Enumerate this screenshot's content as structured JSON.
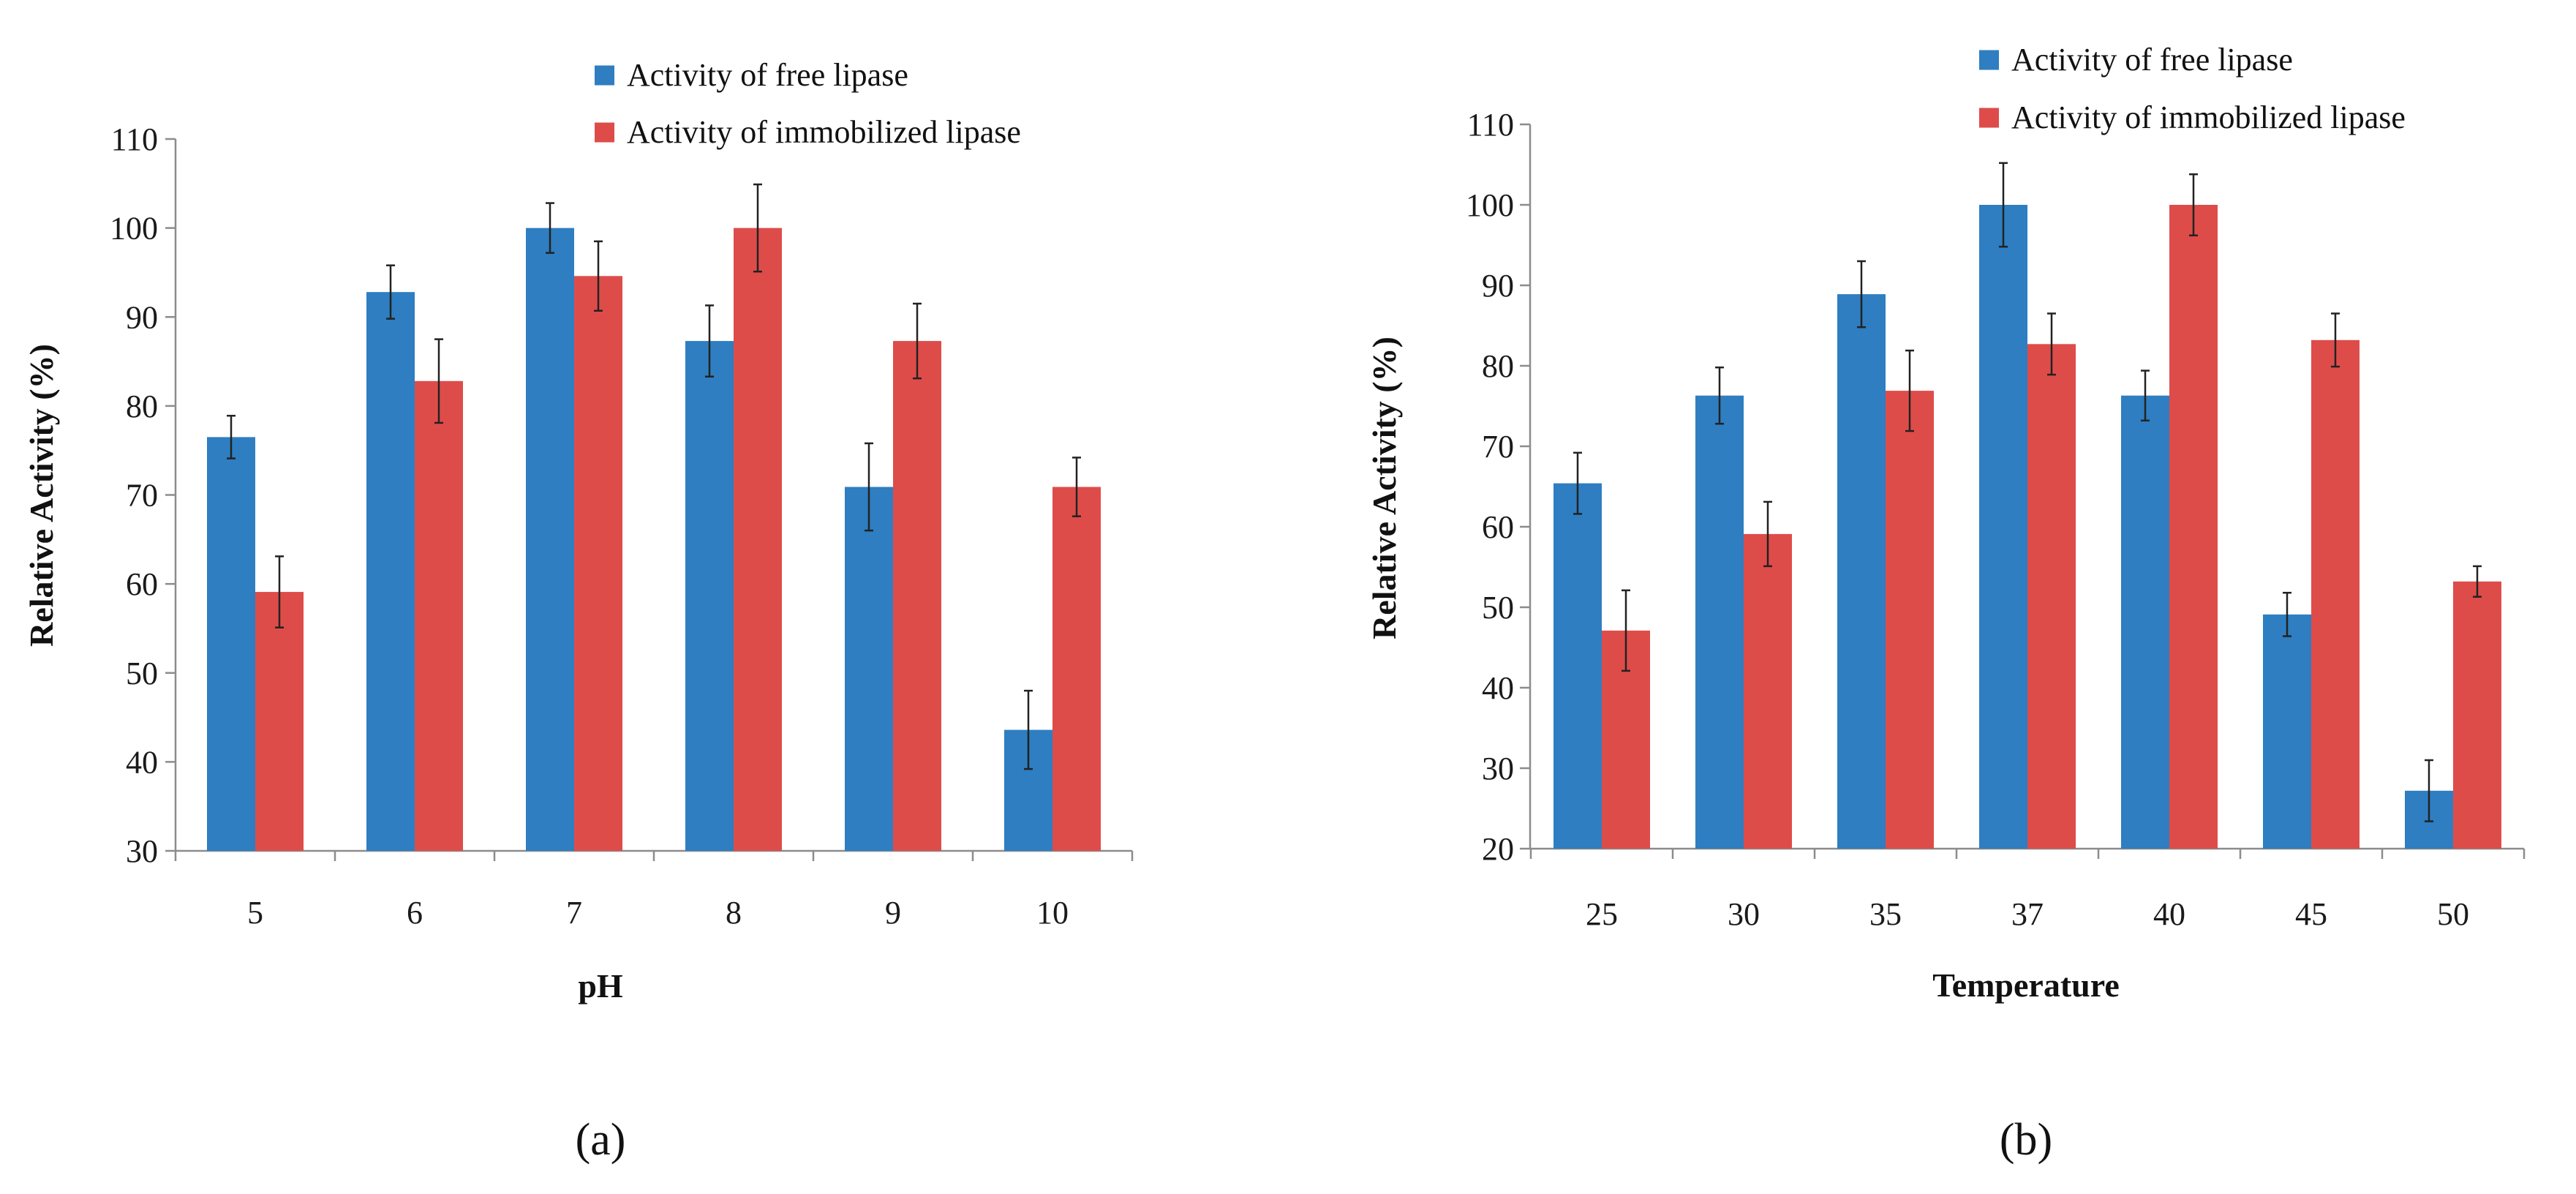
{
  "chart_data": [
    {
      "type": "bar",
      "panel": "(a)",
      "categories": [
        "5",
        "6",
        "7",
        "8",
        "9",
        "10"
      ],
      "series": [
        {
          "name": "Activity of free lipase",
          "color": "#2E7EC1",
          "values": [
            76.5,
            92.8,
            100,
            87.3,
            70.9,
            43.6
          ],
          "errors": [
            2.4,
            3.0,
            2.8,
            4.0,
            4.9,
            4.4
          ]
        },
        {
          "name": "Activity of immobilized lipase",
          "color": "#DE4C4A",
          "values": [
            59.1,
            82.8,
            94.6,
            100,
            87.3,
            70.9
          ],
          "errors": [
            4.0,
            4.7,
            3.9,
            4.9,
            4.2,
            3.3
          ]
        }
      ],
      "title": "",
      "xlabel": "pH",
      "ylabel": "Relative Activity (%)",
      "ylim": [
        30,
        110
      ],
      "yticks": [
        30,
        40,
        50,
        60,
        70,
        80,
        90,
        100,
        110
      ],
      "grid": false,
      "legend_position": "top-right"
    },
    {
      "type": "bar",
      "panel": "(b)",
      "categories": [
        "25",
        "30",
        "35",
        "37",
        "40",
        "45",
        "50"
      ],
      "series": [
        {
          "name": "Activity of free lipase",
          "color": "#2E7EC1",
          "values": [
            65.4,
            76.3,
            88.9,
            100,
            76.3,
            49.1,
            27.2
          ],
          "errors": [
            3.8,
            3.5,
            4.1,
            5.2,
            3.1,
            2.7,
            3.8
          ]
        },
        {
          "name": "Activity of immobilized lipase",
          "color": "#DE4C4A",
          "values": [
            47.1,
            59.1,
            76.9,
            82.7,
            100,
            83.2,
            53.2
          ],
          "errors": [
            5.0,
            4.0,
            5.0,
            3.8,
            3.8,
            3.3,
            1.9
          ]
        }
      ],
      "title": "",
      "xlabel": "Temperature",
      "ylabel": "Relative Activity (%)",
      "ylim": [
        20,
        110
      ],
      "yticks": [
        20,
        30,
        40,
        50,
        60,
        70,
        80,
        90,
        100,
        110
      ],
      "grid": false,
      "legend_position": "top-right"
    }
  ]
}
